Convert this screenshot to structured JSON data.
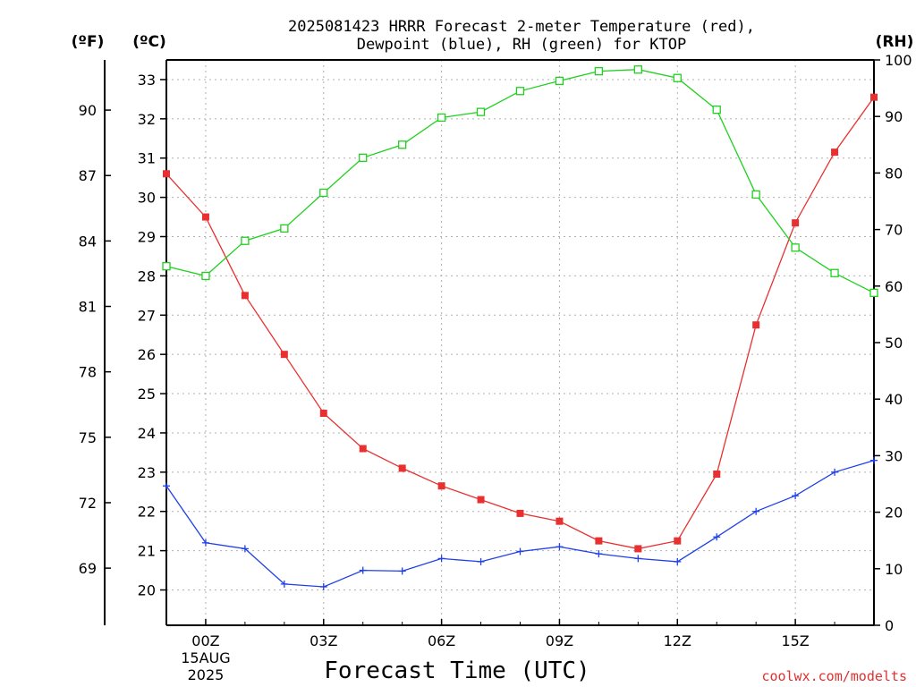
{
  "chart_data": {
    "type": "line",
    "title_line1": "2025081423 HRRR Forecast 2-meter Temperature (red),",
    "title_line2": "Dewpoint (blue), RH (green) for KTOP",
    "xlabel": "Forecast Time (UTC)",
    "credit": "coolwx.com/modelts",
    "unit_f": "(ºF)",
    "unit_c": "(ºC)",
    "unit_rh": "(RH)",
    "x_hours": [
      -1,
      0,
      1,
      2,
      3,
      4,
      5,
      6,
      7,
      8,
      9,
      10,
      11,
      12,
      13,
      14,
      15,
      16,
      17
    ],
    "x_ticks": [
      {
        "hour": 0,
        "label": "00Z",
        "sub1": "15AUG",
        "sub2": "2025"
      },
      {
        "hour": 3,
        "label": "03Z"
      },
      {
        "hour": 6,
        "label": "06Z"
      },
      {
        "hour": 9,
        "label": "09Z"
      },
      {
        "hour": 12,
        "label": "12Z"
      },
      {
        "hour": 15,
        "label": "15Z"
      }
    ],
    "xlim": [
      -1,
      17
    ],
    "ylim_c": [
      19.1,
      33.5
    ],
    "ylim_rh": [
      0,
      100
    ],
    "c_ticks": [
      20,
      21,
      22,
      23,
      24,
      25,
      26,
      27,
      28,
      29,
      30,
      31,
      32,
      33
    ],
    "f_ticks": [
      69,
      72,
      75,
      78,
      81,
      84,
      87,
      90
    ],
    "rh_ticks": [
      0,
      10,
      20,
      30,
      40,
      50,
      60,
      70,
      80,
      90,
      100
    ],
    "colors": {
      "temperature": "#e83030",
      "dewpoint": "#2040e8",
      "rh": "#20d020"
    },
    "series": [
      {
        "key": "temperature",
        "marker": "filled-square",
        "values_c": [
          30.6,
          29.5,
          27.5,
          26.0,
          24.5,
          23.6,
          23.1,
          22.65,
          22.3,
          21.95,
          21.75,
          21.25,
          21.05,
          21.25,
          22.95,
          26.75,
          29.35,
          31.15,
          32.55
        ]
      },
      {
        "key": "dewpoint",
        "marker": "plus",
        "values_c": [
          22.65,
          21.2,
          21.05,
          20.15,
          20.08,
          20.5,
          20.48,
          20.8,
          20.72,
          20.98,
          21.1,
          20.92,
          20.8,
          20.72,
          21.35,
          22.0,
          22.4,
          23.0,
          23.3
        ]
      },
      {
        "key": "rh",
        "marker": "open-square",
        "values_rh": [
          63.5,
          61.8,
          68.0,
          70.2,
          76.5,
          82.7,
          85.0,
          89.8,
          90.8,
          94.5,
          96.3,
          98.0,
          98.3,
          96.8,
          91.2,
          76.2,
          66.8,
          62.3,
          58.8
        ]
      }
    ]
  }
}
